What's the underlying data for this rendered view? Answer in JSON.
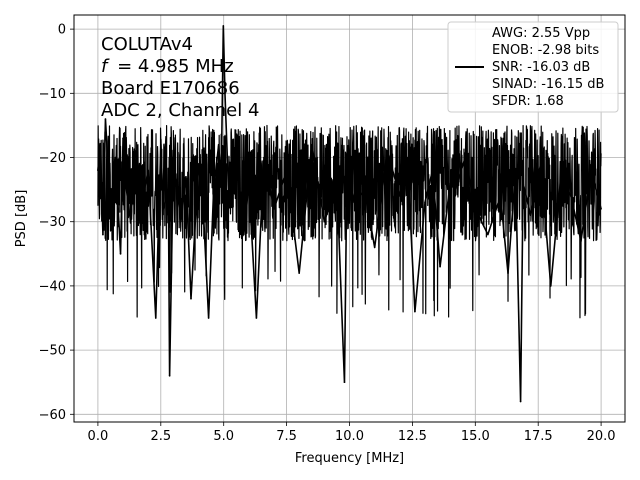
{
  "chart_data": {
    "type": "line",
    "title": "",
    "xlabel": "Frequency [MHz]",
    "ylabel": "PSD [dB]",
    "xlim": [
      -0.95,
      20.95
    ],
    "ylim": [
      -61.2,
      2.2
    ],
    "xticks": [
      0.0,
      2.5,
      5.0,
      7.5,
      10.0,
      12.5,
      15.0,
      17.5,
      20.0
    ],
    "xtick_labels": [
      "0.0",
      "2.5",
      "5.0",
      "7.5",
      "10.0",
      "12.5",
      "15.0",
      "17.5",
      "20.0"
    ],
    "yticks": [
      0,
      -10,
      -20,
      -30,
      -40,
      -50,
      -60
    ],
    "ytick_labels": [
      "0",
      "−10",
      "−20",
      "−30",
      "−40",
      "−50",
      "−60"
    ],
    "grid": true,
    "line_color": "#000000",
    "annotation_lines": [
      "COLUTAv4",
      "= 4.985 MHz",
      "Board E170686",
      "ADC 2, Channel 4"
    ],
    "annotation_italic_symbol": "f",
    "legend": {
      "placement": "top-right",
      "lines": [
        "AWG: 2.55 Vpp",
        "ENOB: -2.98 bits",
        "SNR: -16.03 dB",
        "SINAD: -16.15 dB",
        "SFDR: 1.68"
      ]
    },
    "series": [
      {
        "x": [
          0.0,
          0.1,
          0.2,
          0.3,
          0.5,
          0.7,
          0.9,
          1.0,
          1.1,
          1.3,
          1.5,
          1.8,
          2.0,
          2.3,
          2.5,
          2.6,
          2.8,
          2.85,
          3.0,
          3.3,
          3.5,
          3.7,
          4.0,
          4.2,
          4.4,
          4.6,
          4.8,
          4.9,
          4.985,
          5.05,
          5.2,
          5.5,
          5.8,
          6.0,
          6.3,
          6.6,
          7.0,
          7.5,
          8.0,
          8.5,
          9.0,
          9.5,
          9.8,
          9.9,
          10.2,
          10.6,
          11.0,
          11.5,
          12.0,
          12.3,
          12.6,
          13.0,
          13.3,
          13.6,
          14.0,
          14.2,
          14.6,
          15.0,
          15.5,
          16.0,
          16.3,
          16.6,
          16.8,
          16.9,
          17.2,
          17.6,
          18.0,
          18.4,
          18.8,
          19.2,
          19.6,
          20.0
        ],
        "y": [
          -22,
          -18,
          -32,
          -14,
          -28,
          -20,
          -35,
          -17,
          -24,
          -30,
          -19,
          -26,
          -22,
          -45,
          -18,
          -28,
          -25,
          -54,
          -20,
          -30,
          -23,
          -42,
          -21,
          -29,
          -45,
          -25,
          -18,
          -24,
          0.5,
          -10,
          -26,
          -20,
          -32,
          -24,
          -45,
          -20,
          -28,
          -22,
          -38,
          -18,
          -30,
          -24,
          -55,
          -21,
          -27,
          -25,
          -34,
          -19,
          -26,
          -20,
          -44,
          -27,
          -22,
          -37,
          -24,
          -25,
          -20,
          -28,
          -32,
          -26,
          -38,
          -22,
          -58,
          -24,
          -29,
          -21,
          -40,
          -23,
          -26,
          -33,
          -22,
          -28
        ],
        "noise_band_low": -33,
        "noise_band_high": -15
      }
    ]
  }
}
